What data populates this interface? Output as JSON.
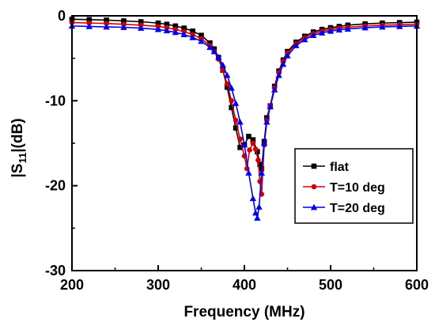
{
  "chart_data": {
    "type": "line",
    "title": "",
    "xlabel": "Frequency (MHz)",
    "ylabel_main": "|S",
    "ylabel_sub": "11",
    "ylabel_tail": "|(dB)",
    "xlim": [
      200,
      600
    ],
    "ylim": [
      -30,
      0
    ],
    "x_ticks": [
      "200",
      "300",
      "400",
      "500",
      "600"
    ],
    "y_ticks": [
      "0",
      "-10",
      "-20",
      "-30"
    ],
    "grid": false,
    "legend_position": "right",
    "series": [
      {
        "name": "flat",
        "color": "#000000",
        "marker": "square",
        "x": [
          200,
          220,
          240,
          260,
          280,
          300,
          310,
          320,
          330,
          340,
          350,
          360,
          365,
          370,
          375,
          380,
          385,
          390,
          395,
          400,
          405,
          410,
          415,
          418,
          420,
          423,
          426,
          430,
          435,
          440,
          445,
          450,
          460,
          470,
          480,
          490,
          500,
          510,
          520,
          540,
          560,
          580,
          600
        ],
        "y": [
          -0.4,
          -0.45,
          -0.5,
          -0.6,
          -0.7,
          -0.85,
          -1.0,
          -1.2,
          -1.45,
          -1.8,
          -2.3,
          -3.2,
          -3.9,
          -4.9,
          -6.4,
          -8.4,
          -10.8,
          -13.2,
          -15.5,
          -15.2,
          -14.2,
          -14.6,
          -16.0,
          -17.5,
          -18.0,
          -14.8,
          -12.0,
          -10.6,
          -8.3,
          -6.5,
          -5.2,
          -4.2,
          -3.1,
          -2.4,
          -1.9,
          -1.6,
          -1.4,
          -1.25,
          -1.1,
          -0.95,
          -0.85,
          -0.8,
          -0.75
        ]
      },
      {
        "name": "T=10 deg",
        "color": "#d40000",
        "marker": "circle",
        "x": [
          200,
          220,
          240,
          260,
          280,
          300,
          310,
          320,
          330,
          340,
          350,
          360,
          365,
          370,
          375,
          380,
          385,
          390,
          395,
          400,
          403,
          406,
          410,
          413,
          416,
          418,
          420,
          423,
          426,
          430,
          435,
          440,
          445,
          450,
          460,
          470,
          480,
          490,
          500,
          510,
          520,
          540,
          560,
          580,
          600
        ],
        "y": [
          -0.8,
          -0.85,
          -0.9,
          -1.0,
          -1.1,
          -1.25,
          -1.4,
          -1.6,
          -1.85,
          -2.2,
          -2.7,
          -3.5,
          -4.2,
          -5.1,
          -6.4,
          -8.0,
          -10.0,
          -12.3,
          -14.5,
          -16.5,
          -18.0,
          -15.8,
          -15.0,
          -15.7,
          -17.0,
          -19.5,
          -21.0,
          -15.2,
          -12.3,
          -10.6,
          -8.5,
          -6.7,
          -5.4,
          -4.4,
          -3.3,
          -2.6,
          -2.1,
          -1.8,
          -1.6,
          -1.45,
          -1.35,
          -1.2,
          -1.1,
          -1.05,
          -1.0
        ]
      },
      {
        "name": "T=20 deg",
        "color": "#0000ee",
        "marker": "triangle",
        "x": [
          200,
          220,
          240,
          260,
          280,
          300,
          310,
          320,
          330,
          340,
          350,
          360,
          365,
          370,
          375,
          380,
          385,
          390,
          395,
          400,
          405,
          410,
          413,
          415,
          417,
          420,
          423,
          426,
          430,
          435,
          440,
          445,
          450,
          460,
          470,
          480,
          490,
          500,
          510,
          520,
          540,
          560,
          580,
          600
        ],
        "y": [
          -1.2,
          -1.25,
          -1.3,
          -1.35,
          -1.45,
          -1.6,
          -1.75,
          -1.95,
          -2.2,
          -2.55,
          -3.0,
          -3.7,
          -4.2,
          -4.9,
          -5.8,
          -7.0,
          -8.5,
          -10.3,
          -12.5,
          -15.2,
          -18.5,
          -21.5,
          -23.2,
          -23.8,
          -22.5,
          -18.5,
          -15.0,
          -12.5,
          -10.7,
          -8.7,
          -7.0,
          -5.7,
          -4.7,
          -3.5,
          -2.8,
          -2.3,
          -2.0,
          -1.8,
          -1.65,
          -1.55,
          -1.4,
          -1.3,
          -1.25,
          -1.2
        ]
      }
    ]
  }
}
